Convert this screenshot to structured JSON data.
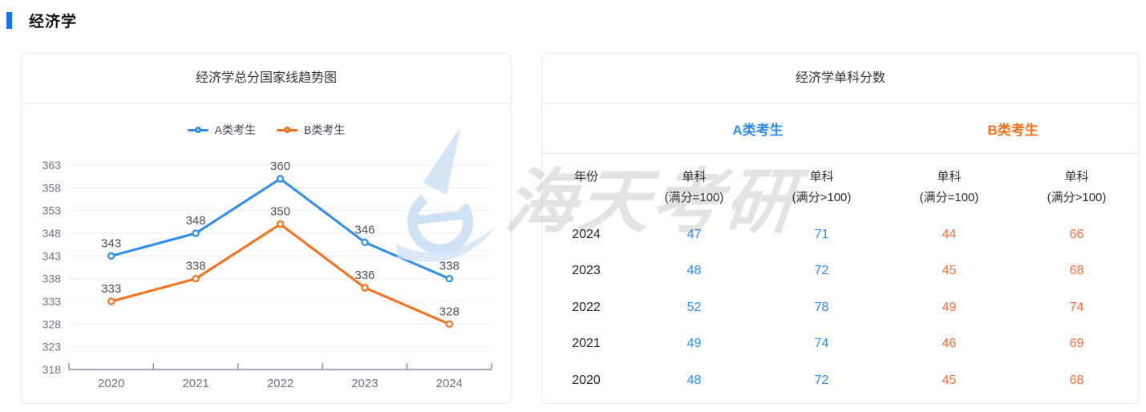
{
  "colors": {
    "accent": "#1173f0",
    "series_a": "#2d8cf0",
    "series_b": "#f7711c",
    "value_b": "#fb6d3b",
    "grid_line": "#e9eef6",
    "axis_line": "#868b9c",
    "card_border": "#e7e9ec",
    "text_dark": "#333333",
    "text_gray": "#6e7480",
    "watermark_gray": "rgba(40,40,40,0.13)",
    "watermark_blue": "#cfe2f4"
  },
  "section": {
    "title": "经济学"
  },
  "chart_card": {
    "title": "经济学总分国家线趋势图"
  },
  "chart_data": {
    "type": "line",
    "title": "经济学总分国家线趋势图",
    "categories": [
      "2020",
      "2021",
      "2022",
      "2023",
      "2024"
    ],
    "series": [
      {
        "name": "A类考生",
        "color": "#2d8cf0",
        "values": [
          343,
          348,
          360,
          346,
          338
        ]
      },
      {
        "name": "B类考生",
        "color": "#f7711c",
        "values": [
          333,
          338,
          350,
          336,
          328
        ]
      }
    ],
    "ylim": [
      318,
      363
    ],
    "yticks": [
      318,
      323,
      328,
      333,
      338,
      343,
      348,
      353,
      358,
      363
    ],
    "grid": true,
    "legend_position": "top",
    "point_labels": true,
    "xlabel": "",
    "ylabel": ""
  },
  "table_card": {
    "title": "经济学单科分数",
    "groups": [
      {
        "label": "A类考生"
      },
      {
        "label": "B类考生"
      }
    ],
    "columns": [
      {
        "line1": "年份",
        "line2": ""
      },
      {
        "line1": "单科",
        "line2": "(满分=100)"
      },
      {
        "line1": "单科",
        "line2": "(满分>100)"
      },
      {
        "line1": "单科",
        "line2": "(满分=100)"
      },
      {
        "line1": "单科",
        "line2": "(满分>100)"
      }
    ],
    "rows": [
      {
        "year": "2024",
        "values": [
          47,
          71,
          44,
          66
        ]
      },
      {
        "year": "2023",
        "values": [
          48,
          72,
          45,
          68
        ]
      },
      {
        "year": "2022",
        "values": [
          52,
          78,
          49,
          74
        ]
      },
      {
        "year": "2021",
        "values": [
          49,
          74,
          46,
          69
        ]
      },
      {
        "year": "2020",
        "values": [
          48,
          72,
          45,
          68
        ]
      }
    ]
  },
  "watermark": {
    "text": "海天考研"
  }
}
